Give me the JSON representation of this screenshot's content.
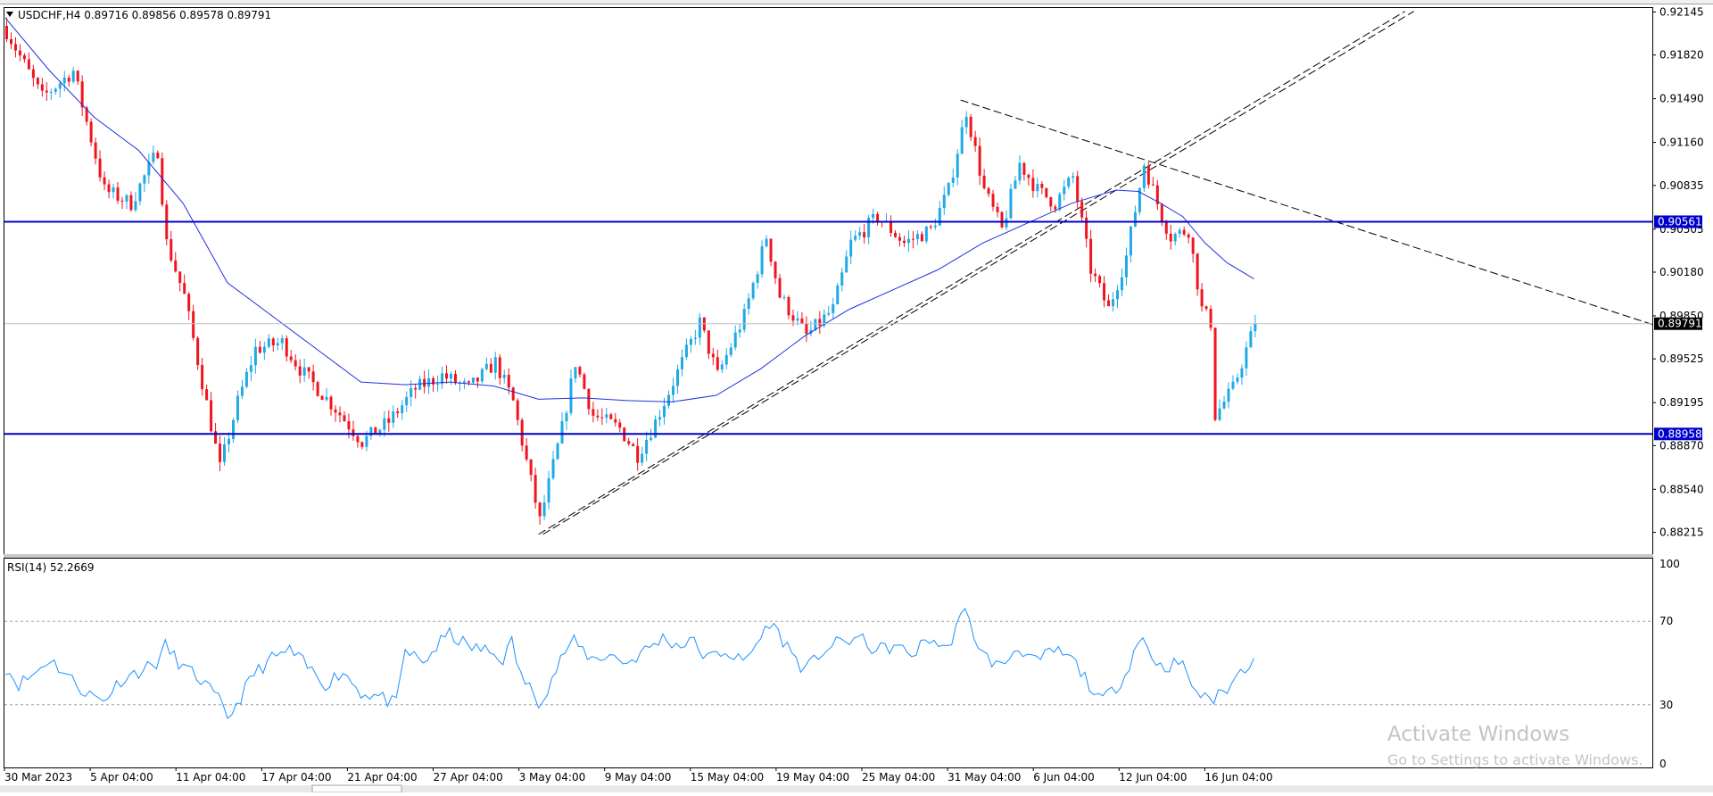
{
  "header": {
    "symbol_line": "USDCHF,H4  0.89716 0.89856 0.89578 0.89791"
  },
  "rsi": {
    "label": "RSI(14) 52.2669",
    "levels": [
      30,
      70
    ],
    "axis_ticks": [
      "100",
      "70",
      "30",
      "0"
    ],
    "ylim": [
      0,
      100
    ]
  },
  "watermark": {
    "line1": "Activate Windows",
    "line2": "Go to Settings to activate Windows."
  },
  "colors": {
    "bull": "#1fa9e6",
    "bear": "#f0141e",
    "ma": "#2030e0",
    "hline": "#0000cc",
    "trend": "#000000",
    "rsi": "#1e90ff"
  },
  "chart_data": [
    {
      "type": "candlestick",
      "symbol": "USDCHF",
      "timeframe": "H4",
      "ylim": [
        0.8805,
        0.92175
      ],
      "y_ticks": [
        "0.92145",
        "0.91820",
        "0.91490",
        "0.91160",
        "0.90835",
        "0.90505",
        "0.90180",
        "0.89850",
        "0.89525",
        "0.89195",
        "0.88870",
        "0.88540",
        "0.88215"
      ],
      "x_ticks": [
        "30 Mar 2023",
        "5 Apr 04:00",
        "11 Apr 04:00",
        "17 Apr 04:00",
        "21 Apr 04:00",
        "27 Apr 04:00",
        "3 May 04:00",
        "9 May 04:00",
        "15 May 04:00",
        "19 May 04:00",
        "25 May 04:00",
        "31 May 04:00",
        "6 Jun 04:00",
        "12 Jun 04:00",
        "16 Jun 04:00"
      ],
      "close_path": [
        [
          0,
          0.92
        ],
        [
          8,
          0.915
        ],
        [
          15,
          0.917
        ],
        [
          22,
          0.908
        ],
        [
          28,
          0.907
        ],
        [
          34,
          0.911
        ],
        [
          36,
          0.904
        ],
        [
          40,
          0.9
        ],
        [
          48,
          0.887
        ],
        [
          52,
          0.892
        ],
        [
          56,
          0.896
        ],
        [
          62,
          0.8965
        ],
        [
          66,
          0.8945
        ],
        [
          74,
          0.8915
        ],
        [
          80,
          0.889
        ],
        [
          86,
          0.8905
        ],
        [
          92,
          0.893
        ],
        [
          98,
          0.894
        ],
        [
          104,
          0.893
        ],
        [
          110,
          0.895
        ],
        [
          114,
          0.892
        ],
        [
          120,
          0.883
        ],
        [
          125,
          0.89
        ],
        [
          128,
          0.895
        ],
        [
          132,
          0.891
        ],
        [
          138,
          0.89
        ],
        [
          142,
          0.888
        ],
        [
          146,
          0.8905
        ],
        [
          152,
          0.895
        ],
        [
          156,
          0.898
        ],
        [
          160,
          0.894
        ],
        [
          166,
          0.8985
        ],
        [
          171,
          0.9045
        ],
        [
          174,
          0.9
        ],
        [
          180,
          0.897
        ],
        [
          186,
          0.899
        ],
        [
          190,
          0.904
        ],
        [
          196,
          0.906
        ],
        [
          202,
          0.904
        ],
        [
          208,
          0.905
        ],
        [
          212,
          0.908
        ],
        [
          216,
          0.914
        ],
        [
          220,
          0.908
        ],
        [
          224,
          0.905
        ],
        [
          228,
          0.91
        ],
        [
          232,
          0.908
        ],
        [
          236,
          0.907
        ],
        [
          240,
          0.909
        ],
        [
          244,
          0.902
        ],
        [
          248,
          0.899
        ],
        [
          252,
          0.903
        ],
        [
          256,
          0.91
        ],
        [
          260,
          0.906
        ],
        [
          262,
          0.9045
        ],
        [
          266,
          0.905
        ],
        [
          269,
          0.899
        ],
        [
          271,
          0.898
        ],
        [
          272,
          0.891
        ],
        [
          276,
          0.893
        ],
        [
          281,
          0.8979
        ]
      ],
      "moving_average_path": [
        [
          0,
          0.921
        ],
        [
          10,
          0.917
        ],
        [
          20,
          0.9135
        ],
        [
          30,
          0.911
        ],
        [
          40,
          0.907
        ],
        [
          50,
          0.901
        ],
        [
          60,
          0.8985
        ],
        [
          70,
          0.896
        ],
        [
          80,
          0.8935
        ],
        [
          90,
          0.8933
        ],
        [
          100,
          0.8935
        ],
        [
          110,
          0.8932
        ],
        [
          120,
          0.8922
        ],
        [
          130,
          0.8923
        ],
        [
          140,
          0.8921
        ],
        [
          150,
          0.892
        ],
        [
          160,
          0.8925
        ],
        [
          170,
          0.8945
        ],
        [
          180,
          0.897
        ],
        [
          190,
          0.899
        ],
        [
          200,
          0.9005
        ],
        [
          210,
          0.902
        ],
        [
          220,
          0.904
        ],
        [
          230,
          0.9055
        ],
        [
          240,
          0.907
        ],
        [
          250,
          0.908
        ],
        [
          255,
          0.9079
        ],
        [
          260,
          0.907
        ],
        [
          265,
          0.906
        ],
        [
          270,
          0.904
        ],
        [
          275,
          0.9025
        ],
        [
          281,
          0.9013
        ]
      ],
      "horizontal_levels": [
        {
          "label": "0.90561",
          "value": 0.90561
        },
        {
          "label": "0.88958",
          "value": 0.88958
        }
      ],
      "current_price_label": "0.89791",
      "current_price": 0.89791,
      "trendlines": [
        {
          "style": "dashed",
          "points": [
            [
              120,
              0.882
            ],
            [
              315,
              0.9215
            ]
          ]
        },
        {
          "style": "dashed",
          "points": [
            [
              121,
              0.882
            ],
            [
              317,
              0.9215
            ]
          ]
        },
        {
          "style": "dashed",
          "points": [
            [
              215,
              0.9148
            ],
            [
              373,
              0.8976
            ]
          ]
        }
      ]
    },
    {
      "type": "line",
      "name": "RSI(14)",
      "ylim": [
        0,
        100
      ],
      "levels": [
        30,
        70
      ],
      "path": [
        [
          0,
          48
        ],
        [
          3,
          40
        ],
        [
          6,
          44
        ],
        [
          10,
          52
        ],
        [
          14,
          44
        ],
        [
          18,
          36
        ],
        [
          22,
          32
        ],
        [
          26,
          42
        ],
        [
          30,
          46
        ],
        [
          34,
          50
        ],
        [
          36,
          58
        ],
        [
          40,
          48
        ],
        [
          44,
          42
        ],
        [
          48,
          32
        ],
        [
          50,
          24
        ],
        [
          52,
          30
        ],
        [
          56,
          45
        ],
        [
          60,
          52
        ],
        [
          64,
          56
        ],
        [
          68,
          48
        ],
        [
          72,
          40
        ],
        [
          76,
          46
        ],
        [
          80,
          36
        ],
        [
          84,
          34
        ],
        [
          88,
          30
        ],
        [
          90,
          56
        ],
        [
          94,
          50
        ],
        [
          98,
          60
        ],
        [
          100,
          64
        ],
        [
          104,
          58
        ],
        [
          108,
          56
        ],
        [
          112,
          52
        ],
        [
          114,
          60
        ],
        [
          116,
          44
        ],
        [
          120,
          32
        ],
        [
          122,
          38
        ],
        [
          126,
          56
        ],
        [
          128,
          60
        ],
        [
          132,
          52
        ],
        [
          136,
          54
        ],
        [
          140,
          50
        ],
        [
          144,
          56
        ],
        [
          148,
          62
        ],
        [
          152,
          58
        ],
        [
          154,
          62
        ],
        [
          158,
          52
        ],
        [
          162,
          56
        ],
        [
          166,
          50
        ],
        [
          170,
          62
        ],
        [
          172,
          70
        ],
        [
          176,
          58
        ],
        [
          180,
          46
        ],
        [
          184,
          56
        ],
        [
          188,
          60
        ],
        [
          192,
          62
        ],
        [
          196,
          56
        ],
        [
          200,
          58
        ],
        [
          204,
          54
        ],
        [
          208,
          62
        ],
        [
          212,
          56
        ],
        [
          214,
          68
        ],
        [
          216,
          74
        ],
        [
          220,
          54
        ],
        [
          224,
          48
        ],
        [
          228,
          58
        ],
        [
          232,
          50
        ],
        [
          236,
          56
        ],
        [
          240,
          52
        ],
        [
          242,
          46
        ],
        [
          244,
          40
        ],
        [
          246,
          32
        ],
        [
          248,
          34
        ],
        [
          252,
          44
        ],
        [
          254,
          56
        ],
        [
          256,
          62
        ],
        [
          258,
          54
        ],
        [
          260,
          48
        ],
        [
          264,
          50
        ],
        [
          266,
          46
        ],
        [
          268,
          34
        ],
        [
          270,
          36
        ],
        [
          272,
          32
        ],
        [
          274,
          36
        ],
        [
          276,
          40
        ],
        [
          278,
          46
        ],
        [
          281,
          52
        ]
      ]
    }
  ]
}
